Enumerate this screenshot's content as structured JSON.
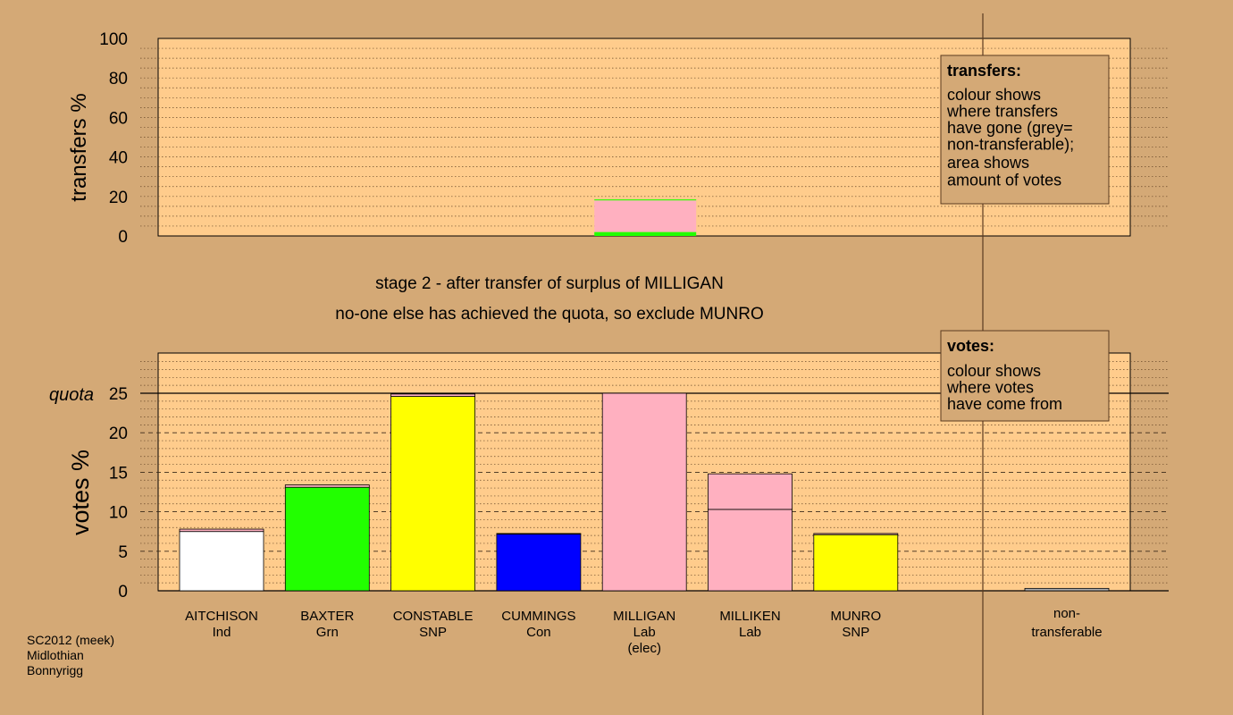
{
  "colors": {
    "background": "#d4a976",
    "panel": "#ffcc8c",
    "white": "#ffffff",
    "green": "#22ff00",
    "yellow": "#ffff00",
    "blue": "#0000ff",
    "pink": "#ffb0c0",
    "grey": "#b0b0b0"
  },
  "chart_data": [
    {
      "type": "bar",
      "name": "transfers",
      "ylabel": "transfers %",
      "ylim": [
        0,
        100
      ],
      "yticks": [
        0,
        20,
        40,
        60,
        80,
        100
      ],
      "gridlines_every": 5,
      "grid": true,
      "bars": [
        {
          "candidate_index": 4,
          "segments": [
            {
              "color": "green",
              "value": 2
            },
            {
              "color": "pink",
              "value": 16
            },
            {
              "color": "green",
              "value": 0.5
            }
          ]
        }
      ],
      "legend": {
        "placement": "top-right",
        "title": "transfers:",
        "lines1": [
          "colour shows",
          "where transfers",
          "have gone (grey=",
          "non-transferable);"
        ],
        "lines2": [
          "area shows",
          "amount of votes"
        ]
      }
    },
    {
      "type": "bar",
      "name": "votes",
      "ylabel": "votes %",
      "ylim": [
        0,
        25
      ],
      "yticks": [
        0,
        5,
        10,
        15,
        20,
        25
      ],
      "quota_label": "quota",
      "quota_value": 25,
      "grid": true,
      "candidates": [
        {
          "name": "AITCHISON",
          "party": "Ind",
          "extra": "",
          "segments": [
            {
              "color": "white",
              "value": 7.5
            },
            {
              "color": "pink",
              "value": 0.3
            }
          ]
        },
        {
          "name": "BAXTER",
          "party": "Grn",
          "extra": "",
          "segments": [
            {
              "color": "green",
              "value": 13.1
            },
            {
              "color": "pink",
              "value": 0.3
            }
          ]
        },
        {
          "name": "CONSTABLE",
          "party": "SNP",
          "extra": "",
          "segments": [
            {
              "color": "yellow",
              "value": 24.6
            },
            {
              "color": "pink",
              "value": 0.3
            }
          ]
        },
        {
          "name": "CUMMINGS",
          "party": "Con",
          "extra": "",
          "segments": [
            {
              "color": "blue",
              "value": 7.2
            },
            {
              "color": "pink",
              "value": 0.05
            }
          ]
        },
        {
          "name": "MILLIGAN",
          "party": "Lab",
          "extra": "(elec)",
          "segments": [
            {
              "color": "pink",
              "value": 25
            }
          ]
        },
        {
          "name": "MILLIKEN",
          "party": "Lab",
          "extra": "",
          "segments": [
            {
              "color": "pink",
              "value": 10.3
            },
            {
              "color": "pink",
              "value": 4.5
            }
          ]
        },
        {
          "name": "MUNRO",
          "party": "SNP",
          "extra": "",
          "segments": [
            {
              "color": "yellow",
              "value": 7.1
            },
            {
              "color": "pink",
              "value": 0.15
            }
          ]
        }
      ],
      "nontransferable": {
        "label1": "non-",
        "label2": "transferable",
        "value": 0.3
      },
      "legend": {
        "placement": "top-right",
        "title": "votes:",
        "lines1": [
          "colour shows",
          "where votes",
          "have come from"
        ]
      }
    }
  ],
  "stage_line1": "stage 2 - after transfer of surplus of MILLIGAN",
  "stage_line2": "no-one else has achieved the quota, so exclude MUNRO",
  "footer": [
    "SC2012 (meek)",
    "Midlothian",
    "Bonnyrigg"
  ]
}
